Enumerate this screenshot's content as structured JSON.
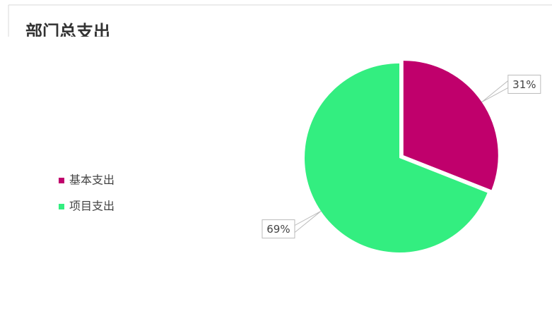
{
  "chart_data": {
    "type": "pie",
    "title": "部门总支出",
    "categories": [
      "基本支出",
      "项目支出"
    ],
    "values": [
      31,
      69
    ],
    "value_labels": [
      "31%",
      "69%"
    ],
    "colors": [
      "#c0006c",
      "#33ee80"
    ],
    "legend": "left"
  }
}
